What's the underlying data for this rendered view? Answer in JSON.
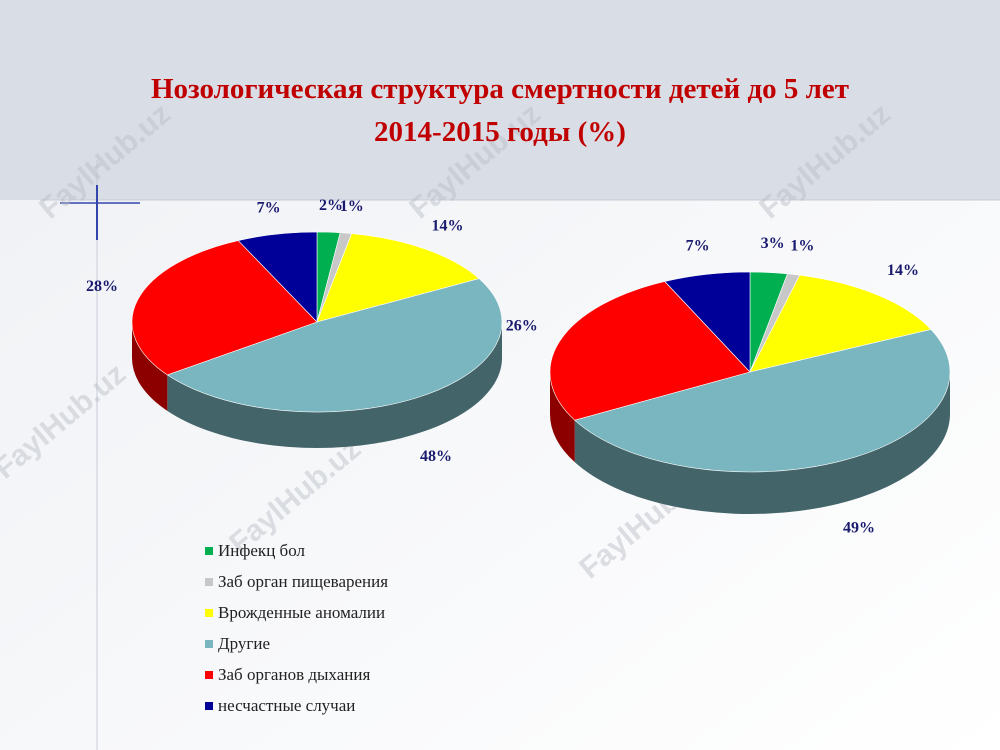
{
  "title": "Нозологическая структура смертности детей до 5 лет",
  "subtitle": "2014-2015 годы (%)",
  "watermark": "FaylHub.uz",
  "chart_data": [
    {
      "type": "pie",
      "categories": [
        "Инфекц бол",
        "Заб орган пищеварения",
        "Врожденные аномалии",
        "Другие",
        "Заб органов дыхания",
        "несчастные случаи"
      ],
      "colors": [
        "#00b050",
        "#c8c8c8",
        "#ffff00",
        "#79b6bf",
        "#ff0000",
        "#000099"
      ],
      "legend": "bottom-left",
      "values": [
        2,
        1,
        14,
        48,
        28,
        7
      ],
      "value_labels": [
        "2%",
        "1%",
        "14%",
        "48%",
        "28%",
        "7%"
      ]
    },
    {
      "type": "pie",
      "values": [
        3,
        1,
        14,
        49,
        26,
        7
      ],
      "value_labels": [
        "3%",
        "1%",
        "14%",
        "49%",
        "26%",
        "7%"
      ]
    }
  ]
}
